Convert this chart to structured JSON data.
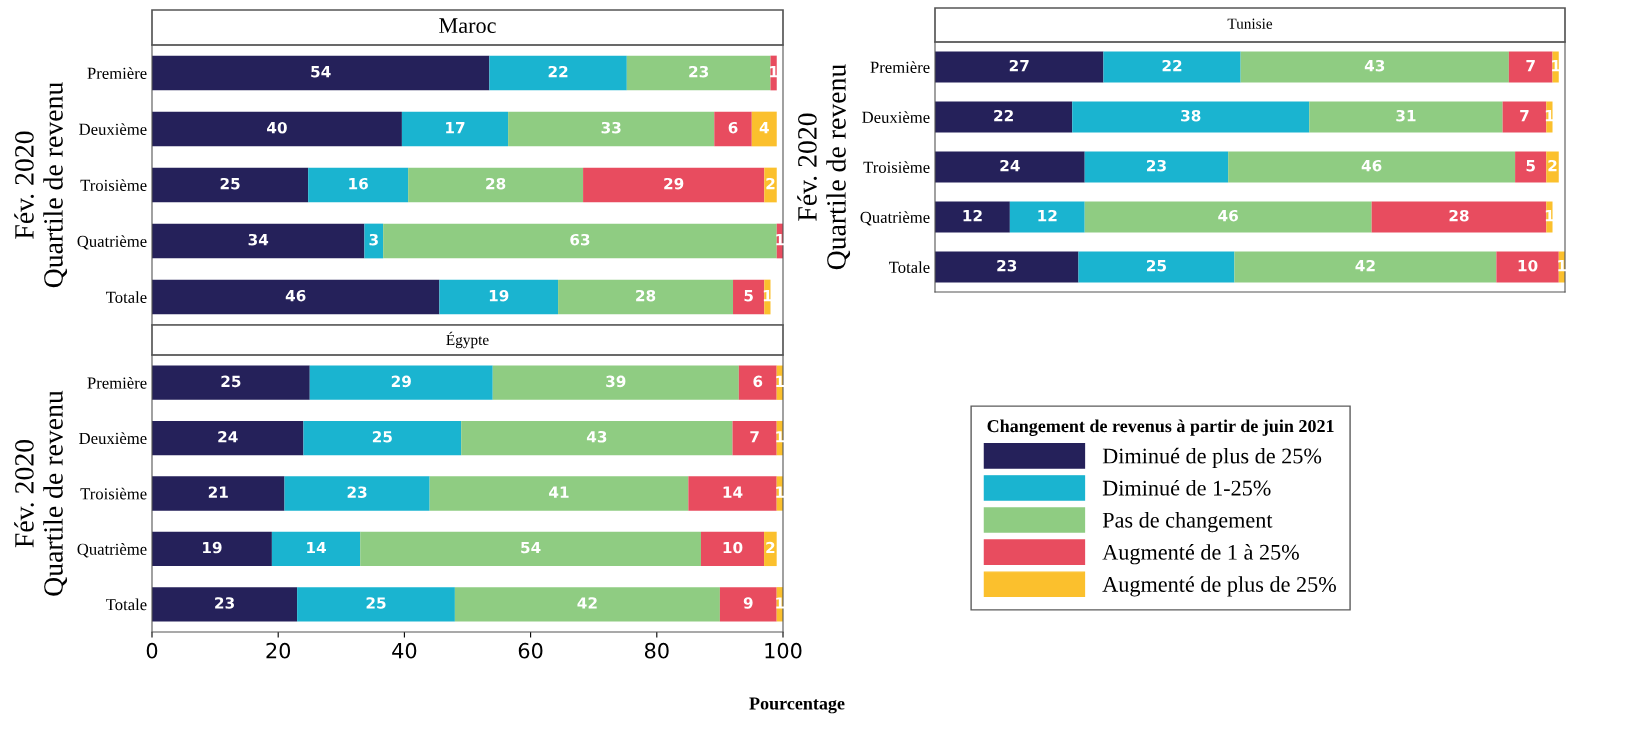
{
  "chart_data": [
    {
      "type": "bar",
      "title": "Maroc",
      "orientation": "horizontal",
      "stacked": true,
      "data_labels": true,
      "legend": "right",
      "legend_title": "Changement de revenus à partir de juin 2021",
      "tick_labels": "y",
      "ylabel": "Fév. 2020\nQuartile de revenu",
      "xlim": [
        0,
        101
      ],
      "categories": [
        "Première",
        "Deuxième",
        "Troisième",
        "Quatrième",
        "Totale"
      ],
      "series": [
        {
          "name": "Diminué de plus de 25%",
          "color": "#25215a",
          "values": [
            54,
            40,
            25,
            34,
            46
          ]
        },
        {
          "name": "Diminué de 1-25%",
          "color": "#1ab4d0",
          "values": [
            22,
            17,
            16,
            3,
            19
          ]
        },
        {
          "name": "Pas de changement",
          "color": "#8fcc82",
          "values": [
            23,
            33,
            28,
            63,
            28
          ]
        },
        {
          "name": "Augmenté de 1 à 25%",
          "color": "#e84c5f",
          "values": [
            1,
            6,
            29,
            1,
            5
          ]
        },
        {
          "name": "Augmenté de plus de 25%",
          "color": "#fbc02d",
          "values": [
            null,
            4,
            2,
            null,
            1
          ]
        }
      ]
    },
    {
      "type": "bar",
      "title": "Égypte",
      "orientation": "horizontal",
      "stacked": true,
      "data_labels": true,
      "ylabel": "Fév. 2020\nQuartile de revenu",
      "xlabel": "Pourcentage",
      "xlim": [
        0,
        100
      ],
      "xticks": [
        0,
        20,
        40,
        60,
        80,
        100
      ],
      "categories": [
        "Première",
        "Deuxième",
        "Troisième",
        "Quatrième",
        "Totale"
      ],
      "series": [
        {
          "color": "#25215a",
          "values": [
            25,
            24,
            21,
            19,
            23
          ]
        },
        {
          "color": "#1ab4d0",
          "values": [
            29,
            25,
            23,
            14,
            25
          ]
        },
        {
          "color": "#8fcc82",
          "values": [
            39,
            43,
            41,
            54,
            42
          ]
        },
        {
          "color": "#e84c5f",
          "values": [
            6,
            7,
            14,
            10,
            9
          ]
        },
        {
          "color": "#fbc02d",
          "values": [
            1,
            1,
            1,
            2,
            1
          ]
        }
      ]
    },
    {
      "type": "bar",
      "title": "Tunisie",
      "orientation": "horizontal",
      "stacked": true,
      "data_labels": true,
      "tick_labels": "y",
      "ylabel": "Fév. 2020\nQuartile de revenu",
      "xlim": [
        0,
        101
      ],
      "categories": [
        "Première",
        "Deuxième",
        "Troisième",
        "Quatrième",
        "Totale"
      ],
      "series": [
        {
          "color": "#25215a",
          "values": [
            27,
            22,
            24,
            12,
            23
          ]
        },
        {
          "color": "#1ab4d0",
          "values": [
            22,
            38,
            23,
            12,
            25
          ]
        },
        {
          "color": "#8fcc82",
          "values": [
            43,
            31,
            46,
            46,
            42
          ]
        },
        {
          "color": "#e84c5f",
          "values": [
            7,
            7,
            5,
            28,
            10
          ]
        },
        {
          "color": "#fbc02d",
          "values": [
            1,
            1,
            2,
            1,
            1
          ]
        }
      ]
    }
  ]
}
